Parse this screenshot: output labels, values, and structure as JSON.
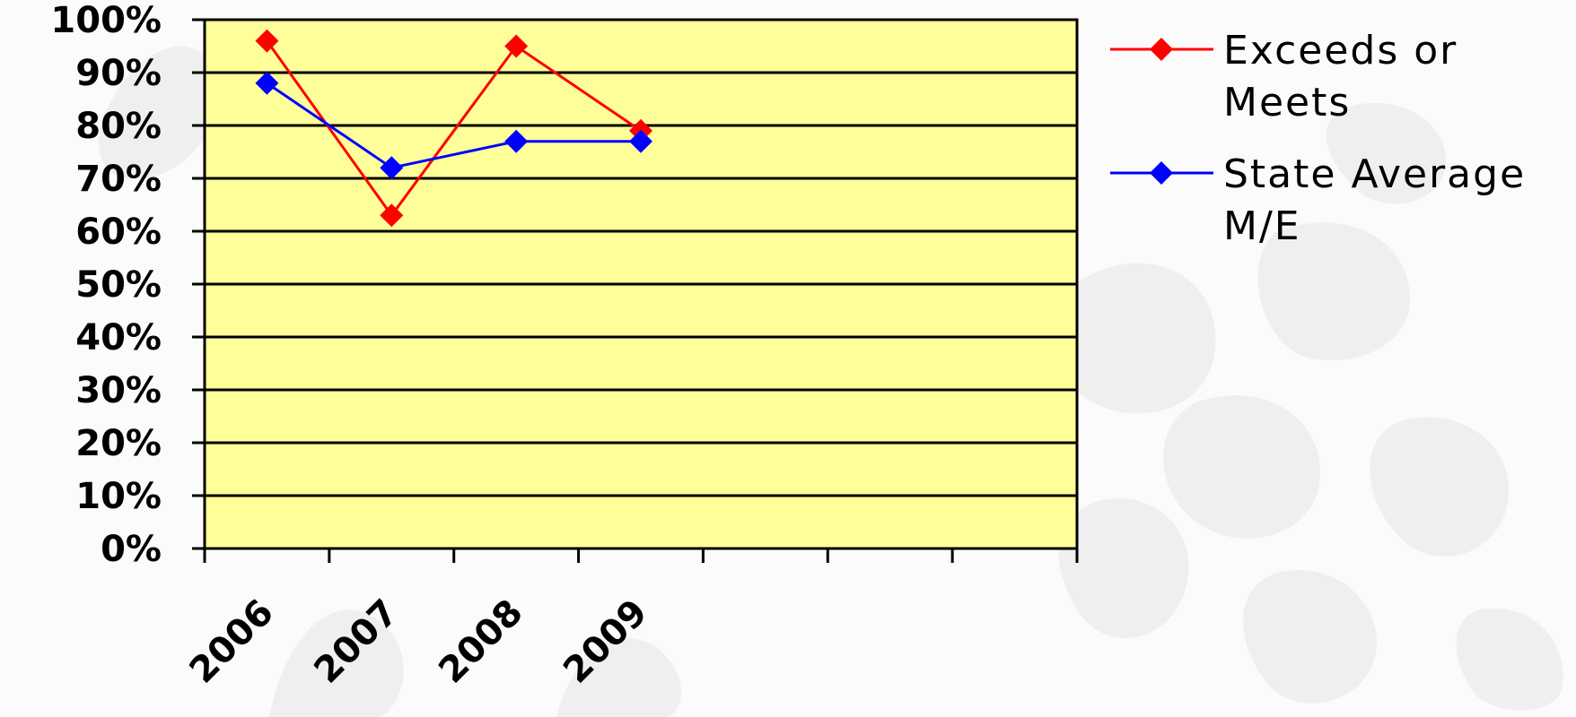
{
  "chart_data": {
    "type": "line",
    "categories": [
      "2006",
      "2007",
      "2008",
      "2009",
      "",
      "",
      ""
    ],
    "series": [
      {
        "name": "Exceeds or Meets",
        "color": "#ff0000",
        "values": [
          96,
          63,
          95,
          79,
          null,
          null,
          null
        ]
      },
      {
        "name": "State Average M/E",
        "color": "#0000ff",
        "values": [
          88,
          72,
          77,
          77,
          null,
          null,
          null
        ]
      }
    ],
    "yticks": [
      "0%",
      "10%",
      "20%",
      "30%",
      "40%",
      "50%",
      "60%",
      "70%",
      "80%",
      "90%",
      "100%"
    ],
    "ylim": [
      0,
      100
    ],
    "grid": true,
    "plot_background": "#ffff99",
    "legend_position": "right",
    "legend": [
      {
        "lines": [
          "Exceeds or",
          "Meets"
        ]
      },
      {
        "lines": [
          "State Average",
          "M/E"
        ]
      }
    ],
    "title": "",
    "xlabel": "",
    "ylabel": ""
  }
}
